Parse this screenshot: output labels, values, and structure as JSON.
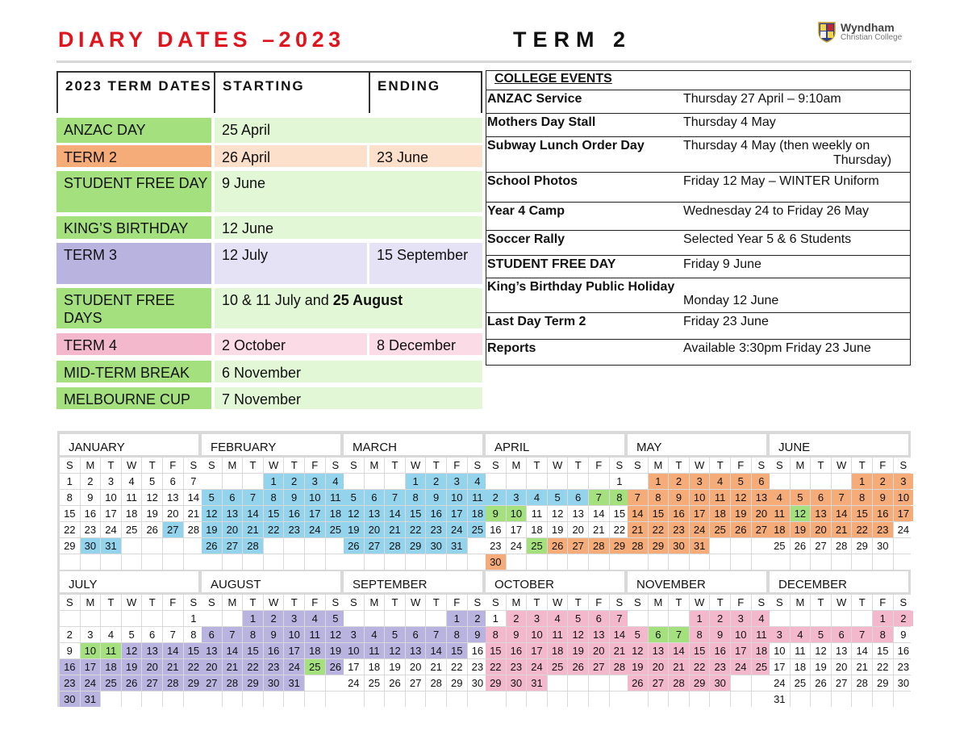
{
  "header": {
    "title": "DIARY DATES –2023",
    "term": "TERM 2",
    "logo": {
      "name": "Wyndham",
      "sub": "Christian College"
    }
  },
  "term_dates": {
    "headers": [
      "2023 TERM DATES",
      "STARTING",
      "ENDING"
    ],
    "rows": [
      {
        "label": "ANZAC DAY",
        "start": "25 April",
        "end": "",
        "kind": "holiday"
      },
      {
        "label": "TERM 2",
        "start": "26 April",
        "end": "23 June",
        "kind": "term2"
      },
      {
        "label": "STUDENT FREE DAY",
        "start": "9 June",
        "end": "",
        "kind": "holiday"
      },
      {
        "label": "KING’S BIRTHDAY",
        "start": "12 June",
        "end": "",
        "kind": "holiday"
      },
      {
        "label": "TERM 3",
        "start": "12 July",
        "end": "15 September",
        "kind": "term3"
      },
      {
        "label": "STUDENT FREE DAYS",
        "start": "10 & 11 July and ",
        "start_bold": "25 August",
        "end": "",
        "kind": "holiday"
      },
      {
        "label": "TERM 4",
        "start": "2 October",
        "end": "8 December",
        "kind": "term4"
      },
      {
        "label": "MID-TERM BREAK",
        "start": "6 November",
        "end": "",
        "kind": "holiday"
      },
      {
        "label": "MELBOURNE CUP",
        "start": "7 November",
        "end": "",
        "kind": "holiday"
      }
    ]
  },
  "college_events": {
    "title": "COLLEGE EVENTS",
    "rows": [
      {
        "name": "ANZAC Service",
        "value": "Thursday 27 April – 9:10am"
      },
      {
        "name": "Mothers Day Stall",
        "value": "Thursday 4 May"
      },
      {
        "name": "Subway Lunch Order Day",
        "value": "Thursday 4 May (then weekly on",
        "value2": "Thursday)"
      },
      {
        "name": "School Photos",
        "value": "Friday 12 May – WINTER Uniform"
      },
      {
        "name": "Year 4 Camp",
        "value": "Wednesday 24 to Friday 26 May"
      },
      {
        "name": "Soccer Rally",
        "value": "Selected Year 5 & 6 Students"
      },
      {
        "name": "STUDENT FREE DAY",
        "value": "Friday 9 June"
      },
      {
        "name": "King’s Birthday Public Holiday",
        "value": "Monday 12 June"
      },
      {
        "name": "Last Day Term 2",
        "value": "Friday 23 June"
      },
      {
        "name": "Reports",
        "value": "Available 3:30pm Friday 23 June"
      }
    ]
  },
  "colors": {
    "term1": "#93d3ec",
    "term2": "#f6ac78",
    "term3": "#b9b3df",
    "term4": "#f3b8cc",
    "holiday": "#a5e07e",
    "term2_light": "#fde0cc",
    "term3_light": "#e6e2f5",
    "term4_light": "#fbdce6",
    "holiday_light": "#e2f7d6",
    "title_red": "#e0141c"
  },
  "calendar": {
    "weekdays": [
      "S",
      "M",
      "T",
      "W",
      "T",
      "F",
      "S"
    ],
    "months": [
      {
        "name": "JANUARY",
        "start_weekday": 0,
        "days": 31,
        "highlights": [
          [
            27,
            27,
            "term1"
          ],
          [
            30,
            31,
            "term1"
          ]
        ]
      },
      {
        "name": "FEBRUARY",
        "start_weekday": 3,
        "days": 28,
        "highlights": [
          [
            1,
            28,
            "term1"
          ]
        ]
      },
      {
        "name": "MARCH",
        "start_weekday": 3,
        "days": 31,
        "highlights": [
          [
            1,
            31,
            "term1"
          ]
        ]
      },
      {
        "name": "APRIL",
        "start_weekday": 6,
        "days": 30,
        "highlights": [
          [
            2,
            6,
            "term1"
          ],
          [
            7,
            10,
            "holiday"
          ],
          [
            25,
            25,
            "holiday"
          ],
          [
            26,
            30,
            "term2"
          ]
        ]
      },
      {
        "name": "MAY",
        "start_weekday": 1,
        "days": 31,
        "highlights": [
          [
            1,
            31,
            "term2"
          ]
        ]
      },
      {
        "name": "JUNE",
        "start_weekday": 4,
        "days": 30,
        "highlights": [
          [
            1,
            23,
            "term2"
          ],
          [
            12,
            12,
            "holiday"
          ]
        ]
      },
      {
        "name": "JULY",
        "start_weekday": 6,
        "days": 31,
        "highlights": [
          [
            10,
            11,
            "holiday"
          ],
          [
            12,
            31,
            "term3"
          ]
        ]
      },
      {
        "name": "AUGUST",
        "start_weekday": 2,
        "days": 31,
        "highlights": [
          [
            1,
            31,
            "term3"
          ],
          [
            25,
            25,
            "holiday"
          ]
        ]
      },
      {
        "name": "SEPTEMBER",
        "start_weekday": 5,
        "days": 30,
        "highlights": [
          [
            1,
            15,
            "term3"
          ]
        ]
      },
      {
        "name": "OCTOBER",
        "start_weekday": 0,
        "days": 31,
        "highlights": [
          [
            2,
            31,
            "term4"
          ]
        ]
      },
      {
        "name": "NOVEMBER",
        "start_weekday": 3,
        "days": 30,
        "highlights": [
          [
            1,
            30,
            "term4"
          ],
          [
            6,
            7,
            "holiday"
          ]
        ]
      },
      {
        "name": "DECEMBER",
        "start_weekday": 5,
        "days": 31,
        "highlights": [
          [
            1,
            8,
            "term4"
          ]
        ]
      }
    ]
  }
}
